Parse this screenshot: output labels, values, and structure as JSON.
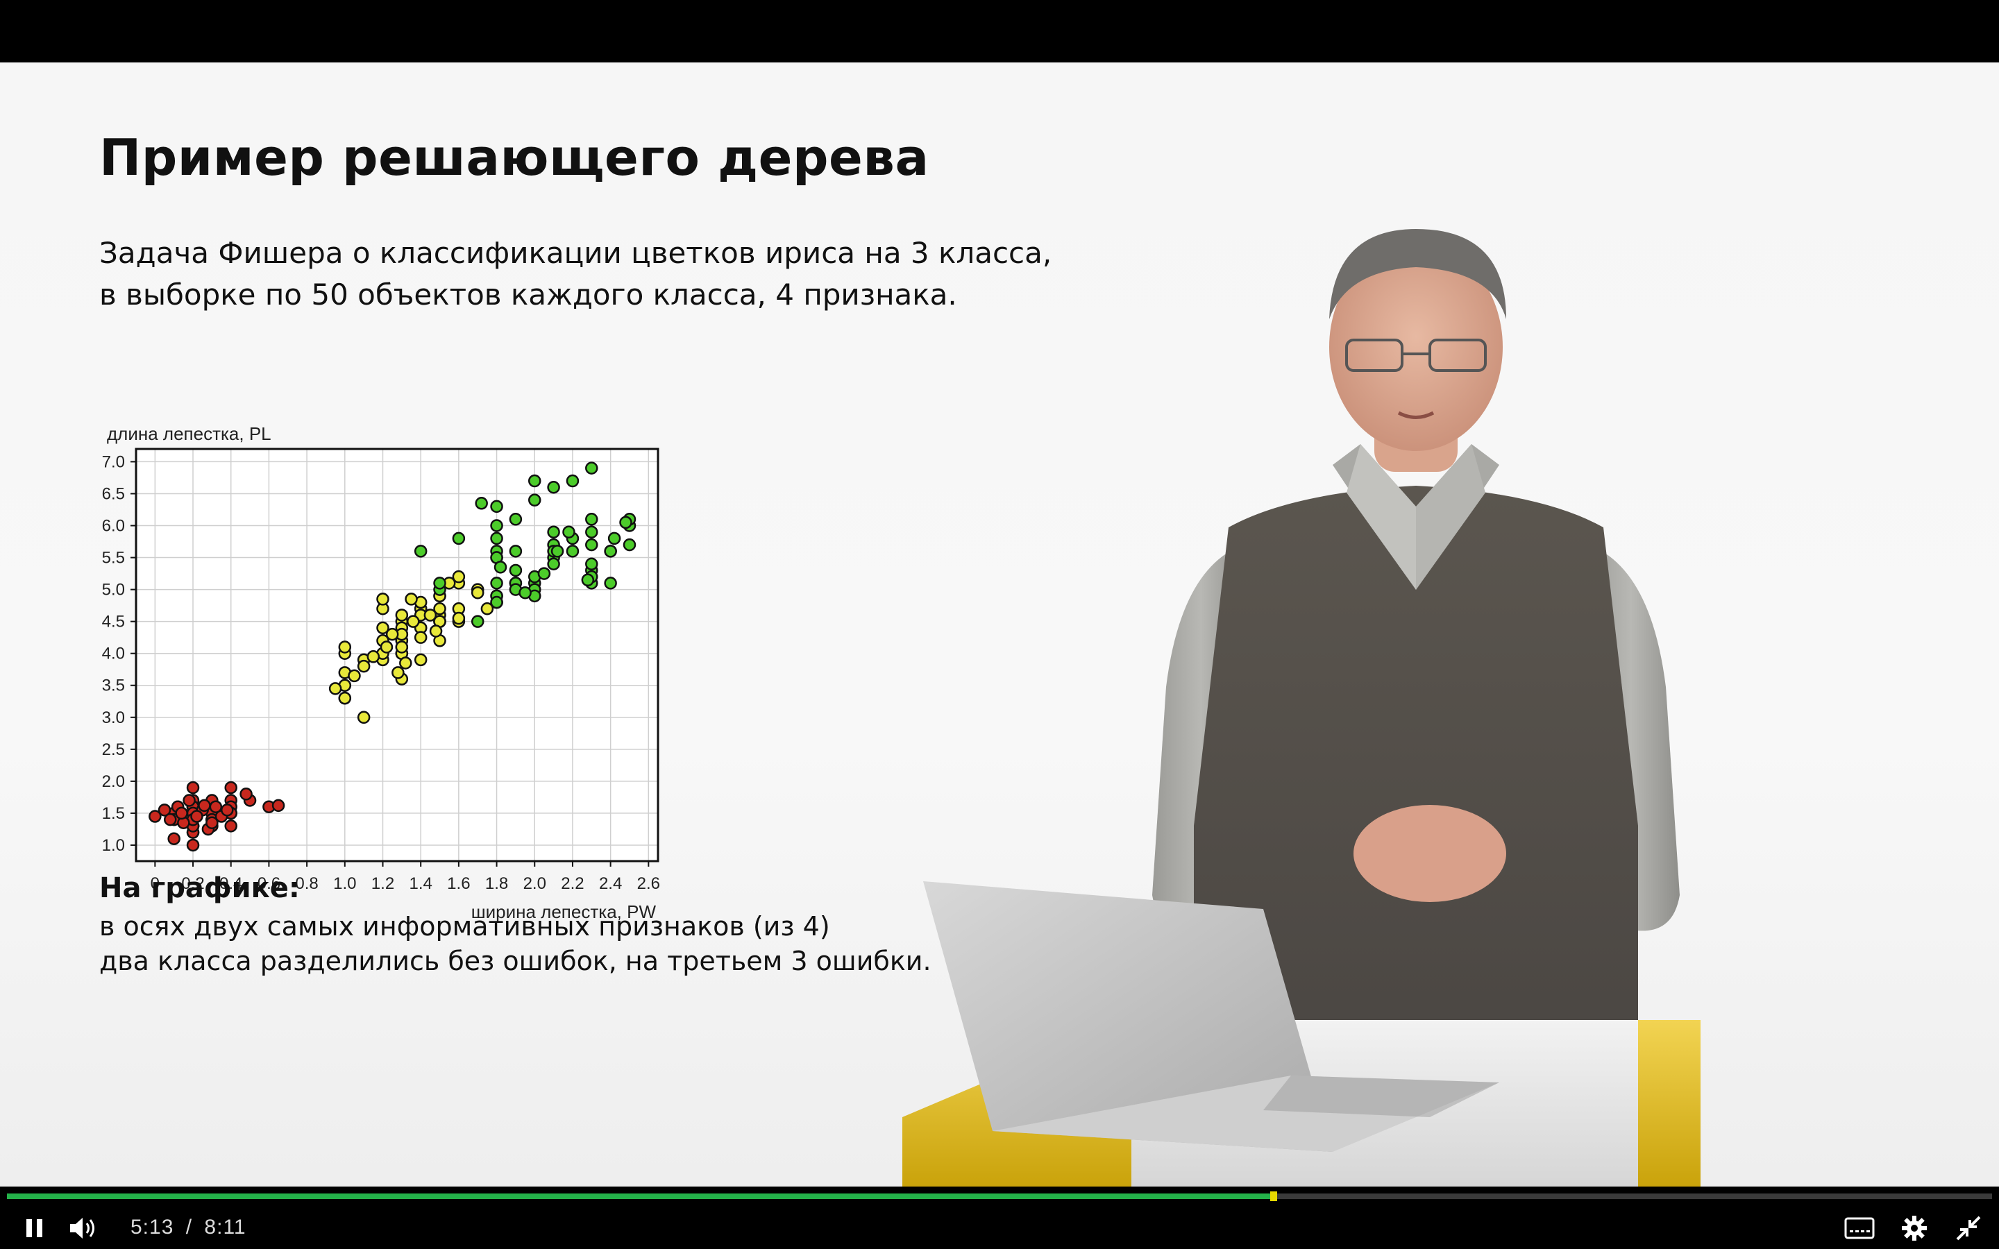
{
  "slide": {
    "title": "Пример решающего дерева",
    "intro_lines": [
      "Задача Фишера о классификации цветков ириса на 3 класса,",
      "в выборке по 50 объектов каждого класса, 4 признака."
    ],
    "notes_heading": "На графике:",
    "notes_lines": [
      "в осях двух самых информативных признаков (из 4)",
      "два класса разделились без ошибок, на третьем 3 ошибки."
    ]
  },
  "player": {
    "current_time": "5:13",
    "separator": "/",
    "duration": "8:11",
    "progress_fraction": 0.638,
    "buffered_fraction": 0.635,
    "colors": {
      "progress": "#24b24a",
      "handle": "#e6d800",
      "background": "#000000"
    },
    "icons": [
      "pause-icon",
      "volume-icon",
      "captions-icon",
      "gear-icon",
      "exit-fullscreen-icon"
    ]
  },
  "chart_data": {
    "type": "scatter",
    "xlabel": "ширина лепестка, PW",
    "ylabel": "длина лепестка, PL",
    "xlim": [
      -0.1,
      2.65
    ],
    "ylim": [
      0.75,
      7.2
    ],
    "xticks": [
      "0",
      "0.2",
      "0.4",
      "0.6",
      "0.8",
      "1.0",
      "1.2",
      "1.4",
      "1.6",
      "1.8",
      "2.0",
      "2.2",
      "2.4",
      "2.6"
    ],
    "xtick_values": [
      0,
      0.2,
      0.4,
      0.6,
      0.8,
      1.0,
      1.2,
      1.4,
      1.6,
      1.8,
      2.0,
      2.2,
      2.4,
      2.6
    ],
    "yticks": [
      "1.0",
      "1.5",
      "2.0",
      "2.5",
      "3.0",
      "3.5",
      "4.0",
      "4.5",
      "5.0",
      "5.5",
      "6.0",
      "6.5",
      "7.0"
    ],
    "ytick_values": [
      1.0,
      1.5,
      2.0,
      2.5,
      3.0,
      3.5,
      4.0,
      4.5,
      5.0,
      5.5,
      6.0,
      6.5,
      7.0
    ],
    "grid": true,
    "series": [
      {
        "color": "#c8281e",
        "points": [
          [
            0.2,
            1.4
          ],
          [
            0.2,
            1.4
          ],
          [
            0.2,
            1.3
          ],
          [
            0.2,
            1.5
          ],
          [
            0.2,
            1.4
          ],
          [
            0.4,
            1.7
          ],
          [
            0.3,
            1.4
          ],
          [
            0.2,
            1.5
          ],
          [
            0.2,
            1.4
          ],
          [
            0.1,
            1.5
          ],
          [
            0.2,
            1.5
          ],
          [
            0.2,
            1.6
          ],
          [
            0.1,
            1.4
          ],
          [
            0.1,
            1.1
          ],
          [
            0.2,
            1.2
          ],
          [
            0.4,
            1.5
          ],
          [
            0.4,
            1.3
          ],
          [
            0.3,
            1.4
          ],
          [
            0.3,
            1.7
          ],
          [
            0.3,
            1.5
          ],
          [
            0.2,
            1.7
          ],
          [
            0.4,
            1.5
          ],
          [
            0.2,
            1.0
          ],
          [
            0.5,
            1.7
          ],
          [
            0.2,
            1.9
          ],
          [
            0.2,
            1.6
          ],
          [
            0.4,
            1.6
          ],
          [
            0.2,
            1.5
          ],
          [
            0.2,
            1.4
          ],
          [
            0.2,
            1.6
          ],
          [
            0.2,
            1.6
          ],
          [
            0.4,
            1.5
          ],
          [
            0.1,
            1.5
          ],
          [
            0.2,
            1.4
          ],
          [
            0.2,
            1.5
          ],
          [
            0.2,
            1.2
          ],
          [
            0.2,
            1.3
          ],
          [
            0.1,
            1.4
          ],
          [
            0.2,
            1.3
          ],
          [
            0.2,
            1.5
          ],
          [
            0.3,
            1.3
          ],
          [
            0.3,
            1.3
          ],
          [
            0.2,
            1.3
          ],
          [
            0.6,
            1.6
          ],
          [
            0.4,
            1.9
          ],
          [
            0.3,
            1.4
          ],
          [
            0.2,
            1.6
          ],
          [
            0.2,
            1.4
          ],
          [
            0.2,
            1.5
          ],
          [
            0.2,
            1.4
          ],
          [
            0.0,
            1.45
          ],
          [
            0.05,
            1.55
          ],
          [
            0.12,
            1.6
          ],
          [
            0.25,
            1.55
          ],
          [
            0.35,
            1.45
          ],
          [
            0.15,
            1.35
          ],
          [
            0.28,
            1.25
          ],
          [
            0.18,
            1.7
          ],
          [
            0.32,
            1.6
          ],
          [
            0.08,
            1.4
          ],
          [
            0.38,
            1.55
          ],
          [
            0.22,
            1.45
          ],
          [
            0.14,
            1.5
          ],
          [
            0.3,
            1.35
          ],
          [
            0.26,
            1.62
          ],
          [
            0.65,
            1.62
          ],
          [
            0.48,
            1.8
          ]
        ]
      },
      {
        "color": "#e8e83a",
        "points": [
          [
            1.4,
            4.7
          ],
          [
            1.5,
            4.5
          ],
          [
            1.5,
            4.9
          ],
          [
            1.3,
            4.0
          ],
          [
            1.5,
            4.6
          ],
          [
            1.3,
            4.5
          ],
          [
            1.6,
            4.7
          ],
          [
            1.0,
            3.3
          ],
          [
            1.3,
            4.6
          ],
          [
            1.4,
            3.9
          ],
          [
            1.0,
            3.5
          ],
          [
            1.5,
            4.2
          ],
          [
            1.0,
            4.0
          ],
          [
            1.4,
            4.7
          ],
          [
            1.3,
            3.6
          ],
          [
            1.4,
            4.4
          ],
          [
            1.5,
            4.5
          ],
          [
            1.0,
            4.1
          ],
          [
            1.5,
            4.5
          ],
          [
            1.1,
            3.9
          ],
          [
            1.8,
            4.8
          ],
          [
            1.3,
            4.0
          ],
          [
            1.5,
            4.9
          ],
          [
            1.2,
            4.7
          ],
          [
            1.3,
            4.3
          ],
          [
            1.4,
            4.4
          ],
          [
            1.4,
            4.8
          ],
          [
            1.7,
            5.0
          ],
          [
            1.5,
            4.5
          ],
          [
            1.0,
            3.5
          ],
          [
            1.1,
            3.8
          ],
          [
            1.0,
            3.7
          ],
          [
            1.2,
            3.9
          ],
          [
            1.6,
            5.1
          ],
          [
            1.5,
            4.5
          ],
          [
            1.6,
            4.5
          ],
          [
            1.5,
            4.7
          ],
          [
            1.3,
            4.4
          ],
          [
            1.3,
            4.1
          ],
          [
            1.3,
            4.0
          ],
          [
            1.2,
            4.4
          ],
          [
            1.4,
            4.6
          ],
          [
            1.2,
            4.0
          ],
          [
            1.0,
            3.3
          ],
          [
            1.3,
            4.2
          ],
          [
            1.2,
            4.2
          ],
          [
            1.3,
            4.2
          ],
          [
            1.3,
            4.3
          ],
          [
            1.1,
            3.0
          ],
          [
            1.3,
            4.1
          ],
          [
            0.95,
            3.45
          ],
          [
            1.05,
            3.65
          ],
          [
            1.2,
            4.85
          ],
          [
            1.35,
            4.85
          ],
          [
            1.55,
            5.1
          ],
          [
            1.6,
            5.2
          ],
          [
            1.45,
            4.6
          ],
          [
            1.25,
            4.3
          ],
          [
            1.4,
            4.25
          ],
          [
            1.7,
            4.95
          ],
          [
            1.22,
            4.1
          ],
          [
            1.36,
            4.5
          ],
          [
            1.15,
            3.95
          ],
          [
            1.32,
            3.85
          ],
          [
            1.48,
            4.35
          ],
          [
            1.28,
            3.7
          ],
          [
            1.6,
            4.55
          ],
          [
            1.75,
            4.7
          ]
        ]
      },
      {
        "color": "#4ccc2a",
        "points": [
          [
            2.5,
            6.0
          ],
          [
            1.9,
            5.1
          ],
          [
            2.1,
            5.9
          ],
          [
            1.8,
            5.6
          ],
          [
            2.2,
            5.8
          ],
          [
            2.1,
            6.6
          ],
          [
            1.7,
            4.5
          ],
          [
            1.8,
            6.3
          ],
          [
            1.8,
            5.8
          ],
          [
            2.5,
            6.1
          ],
          [
            2.0,
            5.1
          ],
          [
            1.9,
            5.3
          ],
          [
            2.1,
            5.5
          ],
          [
            2.0,
            5.0
          ],
          [
            2.4,
            5.1
          ],
          [
            2.3,
            5.3
          ],
          [
            1.8,
            5.5
          ],
          [
            2.2,
            6.7
          ],
          [
            2.3,
            6.9
          ],
          [
            1.5,
            5.0
          ],
          [
            2.3,
            5.7
          ],
          [
            2.0,
            4.9
          ],
          [
            2.0,
            6.7
          ],
          [
            1.8,
            4.9
          ],
          [
            2.1,
            5.7
          ],
          [
            1.8,
            6.0
          ],
          [
            1.8,
            4.8
          ],
          [
            1.8,
            4.9
          ],
          [
            2.1,
            5.6
          ],
          [
            1.6,
            5.8
          ],
          [
            1.9,
            6.1
          ],
          [
            2.0,
            6.4
          ],
          [
            2.2,
            5.6
          ],
          [
            1.5,
            5.1
          ],
          [
            1.4,
            5.6
          ],
          [
            2.3,
            6.1
          ],
          [
            2.4,
            5.6
          ],
          [
            1.8,
            5.5
          ],
          [
            1.8,
            4.8
          ],
          [
            2.1,
            5.4
          ],
          [
            2.4,
            5.6
          ],
          [
            2.3,
            5.1
          ],
          [
            1.9,
            5.1
          ],
          [
            2.3,
            5.9
          ],
          [
            2.5,
            5.7
          ],
          [
            2.3,
            5.2
          ],
          [
            1.9,
            5.0
          ],
          [
            2.0,
            5.2
          ],
          [
            2.3,
            5.4
          ],
          [
            1.8,
            5.1
          ],
          [
            1.72,
            6.35
          ],
          [
            1.9,
            5.6
          ],
          [
            2.05,
            5.25
          ],
          [
            2.12,
            5.6
          ],
          [
            2.28,
            5.15
          ],
          [
            2.42,
            5.8
          ],
          [
            2.48,
            6.05
          ],
          [
            1.82,
            5.35
          ],
          [
            1.95,
            4.95
          ],
          [
            2.18,
            5.9
          ]
        ]
      }
    ]
  }
}
